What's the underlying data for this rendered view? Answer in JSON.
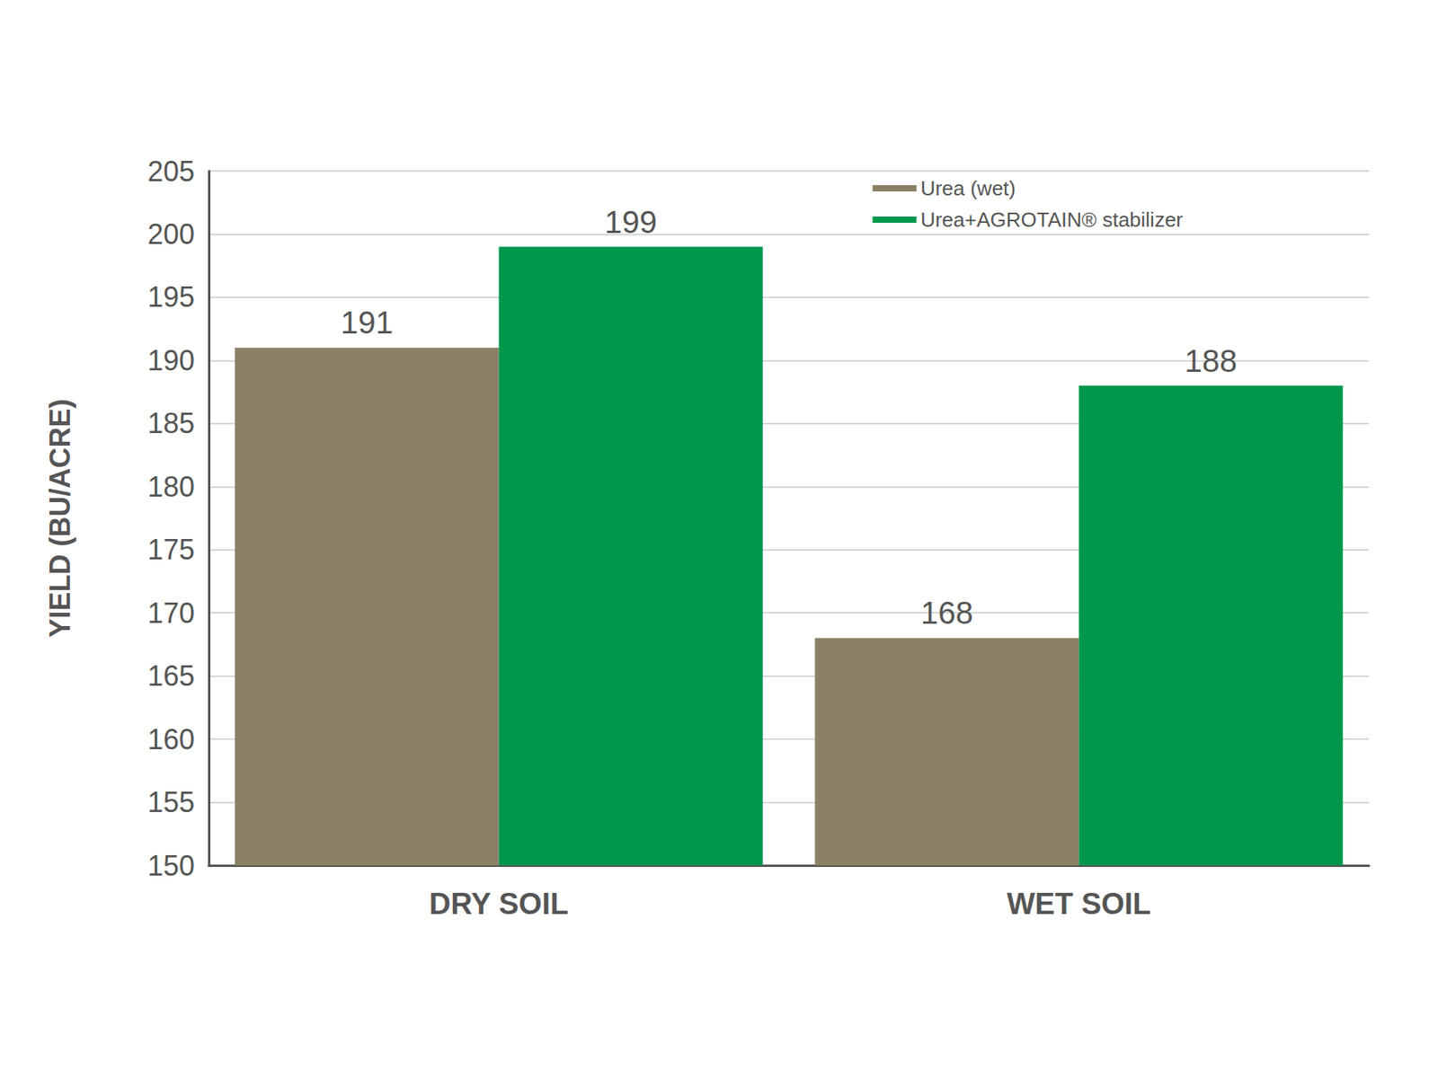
{
  "chart_data": {
    "type": "bar",
    "categories": [
      "DRY SOIL",
      "WET SOIL"
    ],
    "series": [
      {
        "name": "Urea (wet)",
        "color": "#8b7f65",
        "values": [
          191,
          168
        ]
      },
      {
        "name": "Urea+AGROTAIN® stabilizer",
        "color": "#00964c",
        "values": [
          199,
          188
        ]
      }
    ],
    "ylabel": "YIELD (BU/ACRE)",
    "ylim": [
      150,
      205
    ],
    "yticks": [
      150,
      155,
      160,
      165,
      170,
      175,
      180,
      185,
      190,
      195,
      200,
      205
    ],
    "grid": true,
    "legend": "top right",
    "data_labels": true
  }
}
